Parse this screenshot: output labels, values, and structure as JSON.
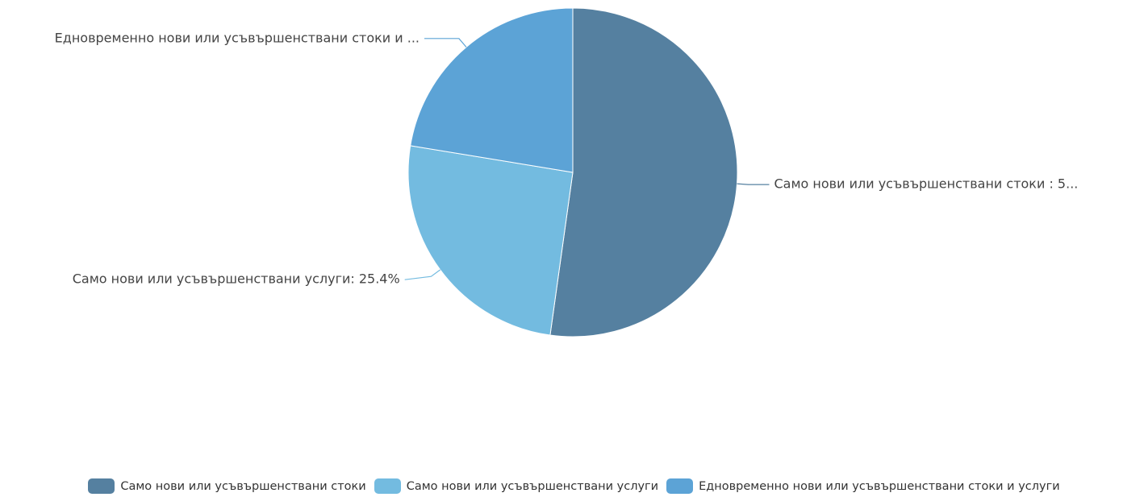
{
  "chart_data": {
    "type": "pie",
    "title": "",
    "unit": "%",
    "start_angle_deg": 0,
    "direction": "clockwise",
    "slices": [
      {
        "name": "Само нови или усъвършенствани стоки",
        "value": 52.2,
        "color": "#5580a0",
        "label": "Само нови или усъвършенствани стоки : 5..."
      },
      {
        "name": "Само нови или усъвършенствани услуги",
        "value": 25.4,
        "color": "#73bbe0",
        "label": "Само нови или усъвършенствани услуги: 25.4%"
      },
      {
        "name": "Едновременно нови или усъвършенствани стоки и услуги",
        "value": 22.4,
        "color": "#5ca3d6",
        "label": "Едновременно нови или усъвършенствани стоки и ..."
      }
    ],
    "legend_position": "bottom"
  }
}
